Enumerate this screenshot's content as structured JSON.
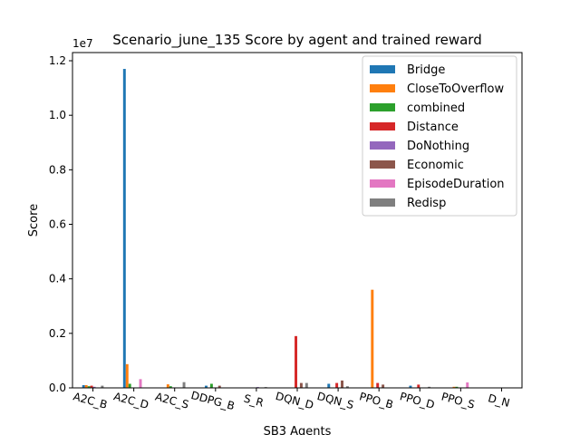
{
  "chart_data": {
    "type": "bar",
    "title": "Scenario_june_135 Score by agent and trained reward",
    "xlabel": "SB3 Agents",
    "ylabel": "Score",
    "scale_label": "1e7",
    "ylim": [
      0,
      12300000
    ],
    "yticks": [
      0,
      2000000,
      4000000,
      6000000,
      8000000,
      10000000,
      12000000
    ],
    "ytick_labels": [
      "0.0",
      "0.2",
      "0.4",
      "0.6",
      "0.8",
      "1.0",
      "1.2"
    ],
    "legend_position": "top-right",
    "grid": false,
    "categories": [
      "A2C_B",
      "A2C_D",
      "A2C_S",
      "DDPG_B",
      "S_R",
      "DQN_D",
      "DQN_S",
      "PPO_B",
      "PPO_D",
      "PPO_S",
      "D_N"
    ],
    "series": [
      {
        "name": "Bridge",
        "color": "#1f77b4",
        "values": [
          100000,
          11700000,
          0,
          80000,
          0,
          0,
          150000,
          0,
          80000,
          0,
          0
        ]
      },
      {
        "name": "CloseToOverflow",
        "color": "#ff7f0e",
        "values": [
          100000,
          870000,
          130000,
          0,
          0,
          0,
          0,
          3600000,
          0,
          40000,
          0
        ]
      },
      {
        "name": "combined",
        "color": "#2ca02c",
        "values": [
          60000,
          150000,
          60000,
          150000,
          0,
          0,
          0,
          0,
          0,
          40000,
          0
        ]
      },
      {
        "name": "Distance",
        "color": "#d62728",
        "values": [
          80000,
          0,
          0,
          0,
          0,
          1900000,
          180000,
          180000,
          120000,
          0,
          0
        ]
      },
      {
        "name": "DoNothing",
        "color": "#9467bd",
        "values": [
          40000,
          0,
          0,
          0,
          30000,
          0,
          0,
          0,
          0,
          0,
          0
        ]
      },
      {
        "name": "Economic",
        "color": "#8c564b",
        "values": [
          0,
          0,
          0,
          80000,
          0,
          180000,
          270000,
          120000,
          0,
          0,
          0
        ]
      },
      {
        "name": "EpisodeDuration",
        "color": "#e377c2",
        "values": [
          0,
          320000,
          0,
          0,
          0,
          0,
          0,
          0,
          0,
          200000,
          0
        ]
      },
      {
        "name": "Redisp",
        "color": "#7f7f7f",
        "values": [
          80000,
          0,
          210000,
          0,
          30000,
          180000,
          60000,
          0,
          40000,
          0,
          0
        ]
      }
    ]
  }
}
